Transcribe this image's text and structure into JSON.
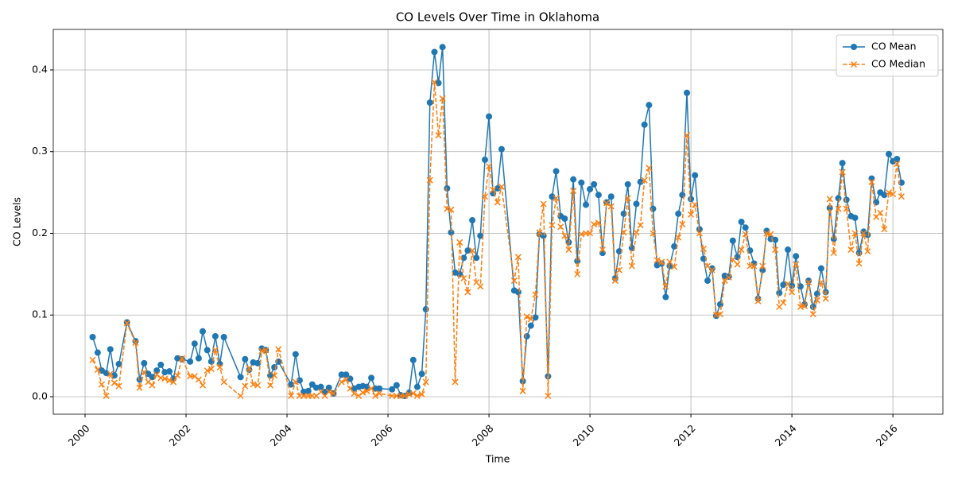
{
  "chart_data": {
    "type": "line",
    "title": "CO Levels Over Time in Oklahoma",
    "xlabel": "Time",
    "ylabel": "CO Levels",
    "x": [
      2000.15,
      2000.25,
      2000.33,
      2000.42,
      2000.5,
      2000.58,
      2000.67,
      2000.83,
      2001.0,
      2001.08,
      2001.17,
      2001.25,
      2001.33,
      2001.42,
      2001.5,
      2001.58,
      2001.67,
      2001.75,
      2001.83,
      2001.92,
      2002.08,
      2002.17,
      2002.25,
      2002.33,
      2002.42,
      2002.5,
      2002.58,
      2002.67,
      2002.75,
      2003.08,
      2003.17,
      2003.25,
      2003.33,
      2003.42,
      2003.5,
      2003.58,
      2003.67,
      2003.75,
      2003.83,
      2004.08,
      2004.17,
      2004.25,
      2004.33,
      2004.42,
      2004.5,
      2004.58,
      2004.67,
      2004.75,
      2004.83,
      2004.92,
      2005.08,
      2005.17,
      2005.25,
      2005.33,
      2005.42,
      2005.5,
      2005.58,
      2005.67,
      2005.75,
      2005.83,
      2006.08,
      2006.17,
      2006.25,
      2006.33,
      2006.42,
      2006.5,
      2006.58,
      2006.67,
      2006.75,
      2006.83,
      2006.92,
      2007.0,
      2007.08,
      2007.17,
      2007.25,
      2007.33,
      2007.42,
      2007.5,
      2007.58,
      2007.67,
      2007.75,
      2007.83,
      2007.92,
      2008.0,
      2008.08,
      2008.17,
      2008.25,
      2008.5,
      2008.58,
      2008.67,
      2008.75,
      2008.83,
      2008.92,
      2009.0,
      2009.08,
      2009.17,
      2009.25,
      2009.33,
      2009.42,
      2009.5,
      2009.58,
      2009.67,
      2009.75,
      2009.83,
      2009.92,
      2010.0,
      2010.08,
      2010.17,
      2010.25,
      2010.33,
      2010.42,
      2010.5,
      2010.58,
      2010.67,
      2010.75,
      2010.83,
      2010.92,
      2011.0,
      2011.08,
      2011.17,
      2011.25,
      2011.33,
      2011.42,
      2011.5,
      2011.58,
      2011.67,
      2011.75,
      2011.83,
      2011.92,
      2012.0,
      2012.08,
      2012.17,
      2012.25,
      2012.33,
      2012.42,
      2012.5,
      2012.58,
      2012.67,
      2012.75,
      2012.83,
      2012.92,
      2013.0,
      2013.08,
      2013.17,
      2013.25,
      2013.33,
      2013.42,
      2013.5,
      2013.58,
      2013.67,
      2013.75,
      2013.83,
      2013.92,
      2014.0,
      2014.08,
      2014.17,
      2014.25,
      2014.33,
      2014.42,
      2014.5,
      2014.58,
      2014.67,
      2014.75,
      2014.83,
      2014.92,
      2015.0,
      2015.08,
      2015.17,
      2015.25,
      2015.33,
      2015.42,
      2015.5,
      2015.58,
      2015.67,
      2015.75,
      2015.83,
      2015.92,
      2016.0,
      2016.08,
      2016.17
    ],
    "series": [
      {
        "name": "CO Mean",
        "color": "#1f77b4",
        "linestyle": "solid",
        "marker": "circle",
        "values": [
          0.073,
          0.054,
          0.032,
          0.029,
          0.058,
          0.026,
          0.04,
          0.091,
          0.068,
          0.021,
          0.041,
          0.028,
          0.024,
          0.032,
          0.039,
          0.03,
          0.031,
          0.022,
          0.047,
          0.046,
          0.043,
          0.065,
          0.047,
          0.08,
          0.057,
          0.043,
          0.074,
          0.04,
          0.073,
          0.024,
          0.046,
          0.033,
          0.042,
          0.041,
          0.059,
          0.057,
          0.026,
          0.036,
          0.043,
          0.015,
          0.052,
          0.02,
          0.006,
          0.007,
          0.015,
          0.011,
          0.012,
          0.006,
          0.011,
          0.004,
          0.027,
          0.027,
          0.022,
          0.01,
          0.012,
          0.013,
          0.012,
          0.023,
          0.01,
          0.01,
          0.009,
          0.014,
          0.002,
          0.001,
          0.005,
          0.045,
          0.012,
          0.028,
          0.107,
          0.36,
          0.422,
          0.384,
          0.428,
          0.255,
          0.201,
          0.152,
          0.15,
          0.17,
          0.179,
          0.216,
          0.17,
          0.197,
          0.29,
          0.343,
          0.249,
          0.255,
          0.303,
          0.13,
          0.128,
          0.019,
          0.074,
          0.087,
          0.097,
          0.199,
          0.197,
          0.025,
          0.245,
          0.276,
          0.221,
          0.218,
          0.189,
          0.266,
          0.166,
          0.262,
          0.235,
          0.254,
          0.26,
          0.247,
          0.176,
          0.238,
          0.245,
          0.145,
          0.178,
          0.224,
          0.26,
          0.182,
          0.236,
          0.263,
          0.333,
          0.357,
          0.23,
          0.161,
          0.163,
          0.122,
          0.16,
          0.184,
          0.224,
          0.247,
          0.372,
          0.242,
          0.271,
          0.205,
          0.169,
          0.142,
          0.157,
          0.099,
          0.113,
          0.148,
          0.147,
          0.191,
          0.171,
          0.214,
          0.207,
          0.179,
          0.163,
          0.12,
          0.155,
          0.203,
          0.193,
          0.192,
          0.127,
          0.137,
          0.18,
          0.136,
          0.172,
          0.135,
          0.113,
          0.142,
          0.11,
          0.126,
          0.157,
          0.128,
          0.231,
          0.193,
          0.243,
          0.286,
          0.241,
          0.221,
          0.219,
          0.176,
          0.202,
          0.198,
          0.267,
          0.238,
          0.25,
          0.247,
          0.297,
          0.288,
          0.291,
          0.262
        ]
      },
      {
        "name": "CO Median",
        "color": "#ff7f0e",
        "linestyle": "dashed",
        "marker": "x",
        "values": [
          0.045,
          0.033,
          0.015,
          0.001,
          0.028,
          0.017,
          0.013,
          0.09,
          0.066,
          0.011,
          0.03,
          0.018,
          0.014,
          0.027,
          0.023,
          0.022,
          0.02,
          0.018,
          0.026,
          0.047,
          0.025,
          0.025,
          0.021,
          0.014,
          0.032,
          0.034,
          0.057,
          0.036,
          0.018,
          0.001,
          0.013,
          0.035,
          0.015,
          0.014,
          0.056,
          0.057,
          0.014,
          0.026,
          0.058,
          0.001,
          0.018,
          0.001,
          0.001,
          0.001,
          0.001,
          0.001,
          0.006,
          0.001,
          0.006,
          0.004,
          0.018,
          0.021,
          0.01,
          0.004,
          0.001,
          0.005,
          0.007,
          0.01,
          0.001,
          0.004,
          0.001,
          0.001,
          0.001,
          0.001,
          0.003,
          0.004,
          0.001,
          0.003,
          0.018,
          0.265,
          0.385,
          0.32,
          0.365,
          0.23,
          0.229,
          0.018,
          0.189,
          0.145,
          0.128,
          0.179,
          0.14,
          0.135,
          0.245,
          0.282,
          0.253,
          0.238,
          0.257,
          0.142,
          0.171,
          0.007,
          0.098,
          0.095,
          0.125,
          0.201,
          0.236,
          0.001,
          0.21,
          0.243,
          0.208,
          0.197,
          0.18,
          0.252,
          0.15,
          0.199,
          0.2,
          0.2,
          0.211,
          0.213,
          0.18,
          0.237,
          0.233,
          0.142,
          0.155,
          0.201,
          0.243,
          0.16,
          0.201,
          0.21,
          0.265,
          0.28,
          0.2,
          0.167,
          0.165,
          0.135,
          0.165,
          0.159,
          0.195,
          0.211,
          0.32,
          0.223,
          0.235,
          0.2,
          0.181,
          0.16,
          0.155,
          0.1,
          0.101,
          0.142,
          0.146,
          0.168,
          0.162,
          0.18,
          0.199,
          0.16,
          0.16,
          0.117,
          0.16,
          0.2,
          0.199,
          0.18,
          0.11,
          0.115,
          0.138,
          0.128,
          0.162,
          0.11,
          0.111,
          0.14,
          0.101,
          0.118,
          0.14,
          0.12,
          0.242,
          0.176,
          0.23,
          0.275,
          0.23,
          0.18,
          0.2,
          0.163,
          0.2,
          0.178,
          0.263,
          0.22,
          0.225,
          0.205,
          0.25,
          0.248,
          0.285,
          0.245
        ]
      }
    ],
    "xlim": [
      1999.37,
      2016.99
    ],
    "xticks": [
      2000,
      2002,
      2004,
      2006,
      2008,
      2010,
      2012,
      2014,
      2016
    ],
    "ylim": [
      -0.0214,
      0.4496
    ],
    "yticks": [
      {
        "value": 0,
        "label": "0.0"
      },
      0.1,
      0.2,
      0.3,
      0.4
    ],
    "grid": true,
    "legend": "upper right"
  }
}
